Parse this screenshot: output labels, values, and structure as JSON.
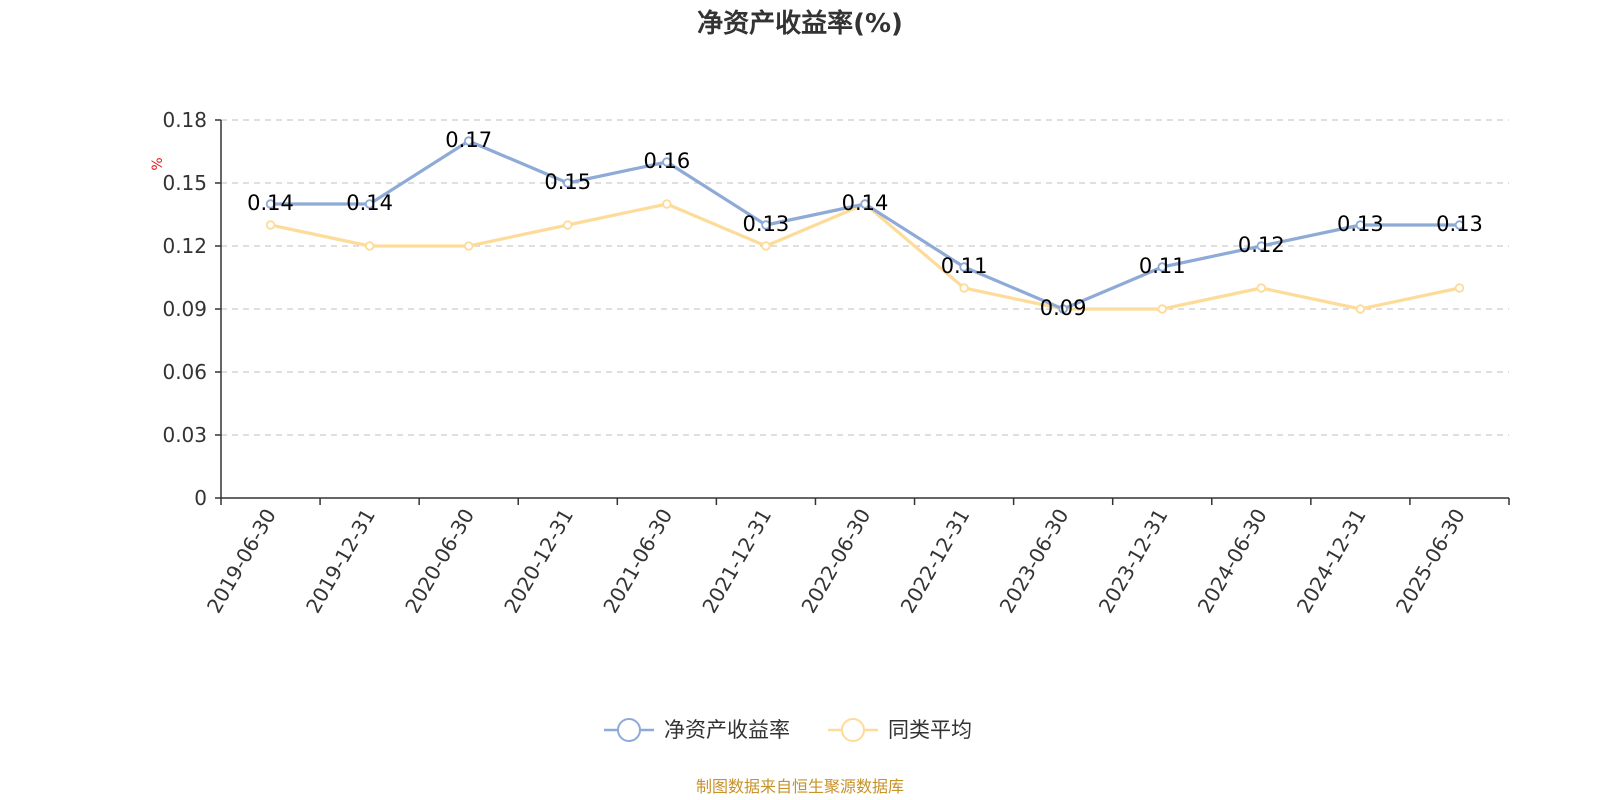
{
  "chart_data": {
    "type": "line",
    "title": "净资产收益率(%)",
    "ylabel": "%",
    "xlabel": "",
    "categories": [
      "2019-06-30",
      "2019-12-31",
      "2020-06-30",
      "2020-12-31",
      "2021-06-30",
      "2021-12-31",
      "2022-06-30",
      "2022-12-31",
      "2023-06-30",
      "2023-12-31",
      "2024-06-30",
      "2024-12-31",
      "2025-06-30"
    ],
    "y_ticks": [
      "0",
      "0.03",
      "0.06",
      "0.09",
      "0.12",
      "0.15",
      "0.18"
    ],
    "ylim": [
      0,
      0.18
    ],
    "grid": true,
    "legend_position": "bottom",
    "series": [
      {
        "name": "净资产收益率",
        "color": "#8eaad6",
        "show_labels": true,
        "values": [
          0.14,
          0.14,
          0.17,
          0.15,
          0.16,
          0.13,
          0.14,
          0.11,
          0.09,
          0.11,
          0.12,
          0.13,
          0.13
        ],
        "labels": [
          "0.14",
          "0.14",
          "0.17",
          "0.15",
          "0.16",
          "0.13",
          "0.14",
          "0.11",
          "0.09",
          "0.11",
          "0.12",
          "0.13",
          "0.13"
        ]
      },
      {
        "name": "同类平均",
        "color": "#fddc9a",
        "show_labels": false,
        "values": [
          0.13,
          0.12,
          0.12,
          0.13,
          0.14,
          0.12,
          0.14,
          0.1,
          0.09,
          0.09,
          0.1,
          0.09,
          0.1
        ]
      }
    ]
  },
  "source_note": "制图数据来自恒生聚源数据库"
}
